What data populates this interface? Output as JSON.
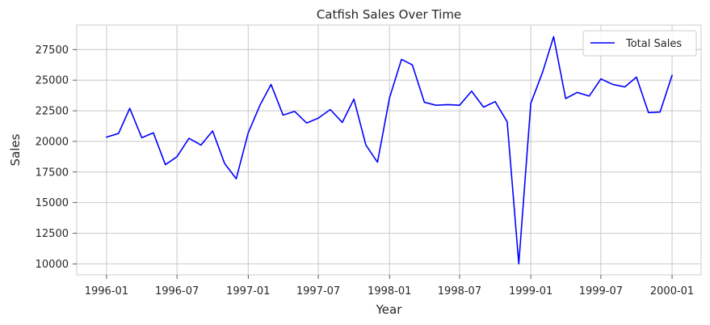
{
  "chart_data": {
    "type": "line",
    "title": "Catfish Sales Over Time",
    "xlabel": "Year",
    "ylabel": "Sales",
    "x_tick_labels": [
      "1996-01",
      "1996-07",
      "1997-01",
      "1997-07",
      "1998-01",
      "1998-07",
      "1999-01",
      "1999-07",
      "2000-01"
    ],
    "y_ticks": [
      10000,
      12500,
      15000,
      17500,
      20000,
      22500,
      25000,
      27500
    ],
    "y_tick_labels": [
      "10000",
      "12500",
      "15000",
      "17500",
      "20000",
      "22500",
      "25000",
      "27500"
    ],
    "xlim": [
      "1995-10-16",
      "2000-03-16"
    ],
    "ylim": [
      9100,
      29500
    ],
    "grid": true,
    "legend_position": "top-right",
    "series": [
      {
        "name": "Total Sales",
        "color": "#0000ff",
        "x": [
          "1996-01-01",
          "1996-02-01",
          "1996-03-01",
          "1996-04-01",
          "1996-05-01",
          "1996-06-01",
          "1996-07-01",
          "1996-08-01",
          "1996-09-01",
          "1996-10-01",
          "1996-11-01",
          "1996-12-01",
          "1997-01-01",
          "1997-02-01",
          "1997-03-01",
          "1997-04-01",
          "1997-05-01",
          "1997-06-01",
          "1997-07-01",
          "1997-08-01",
          "1997-09-01",
          "1997-10-01",
          "1997-11-01",
          "1997-12-01",
          "1998-01-01",
          "1998-02-01",
          "1998-03-01",
          "1998-04-01",
          "1998-05-01",
          "1998-06-01",
          "1998-07-01",
          "1998-08-01",
          "1998-09-01",
          "1998-10-01",
          "1998-11-01",
          "1998-12-01",
          "1999-01-01",
          "1999-02-01",
          "1999-03-01",
          "1999-04-01",
          "1999-05-01",
          "1999-06-01",
          "1999-07-01",
          "1999-08-01",
          "1999-09-01",
          "1999-10-01",
          "1999-11-01",
          "1999-12-01",
          "2000-01-01"
        ],
        "y": [
          20350,
          20650,
          22700,
          20300,
          20700,
          18100,
          18750,
          20250,
          19700,
          20850,
          18200,
          16950,
          20700,
          23000,
          24650,
          22150,
          22450,
          21500,
          21900,
          22600,
          21550,
          23450,
          19700,
          18300,
          23550,
          26700,
          26250,
          23200,
          22950,
          23000,
          22950,
          24100,
          22800,
          23250,
          21600,
          10000,
          23100,
          25700,
          28550,
          23500,
          24000,
          23700,
          25100,
          24650,
          24450,
          25250,
          22350,
          22400,
          25400
        ]
      }
    ]
  }
}
